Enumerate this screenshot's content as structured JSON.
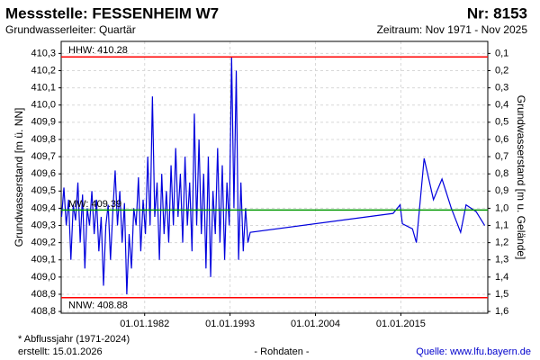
{
  "chart_data": {
    "type": "line",
    "title": "Messstelle: FESSENHEIM W7",
    "number": "Nr: 8153",
    "subtitle": "Grundwasserleiter: Quartär",
    "period": "Zeitraum: Nov 1971 - Nov 2025",
    "ylabel": "Grundwasserstand [m ü. NN]",
    "y2label": "Grundwasserstand [m u. Gelände]",
    "footnote": "* Abflussjahr (1971-2024)",
    "created": "erstellt:  15.01.2026",
    "note": "- Rohdaten -",
    "source": "Quelle: www.lfu.bayern.de",
    "xlim": [
      1971.25,
      2026.2
    ],
    "xticks": [
      {
        "value": 1982,
        "label": "01.01.1982"
      },
      {
        "value": 1993,
        "label": "01.01.1993"
      },
      {
        "value": 2004,
        "label": "01.01.2004"
      },
      {
        "value": 2015,
        "label": "01.01.2015"
      }
    ],
    "ylim": [
      408.79,
      410.37
    ],
    "yticks": [
      {
        "value": 408.8,
        "label": "408,8"
      },
      {
        "value": 408.9,
        "label": "408,9"
      },
      {
        "value": 409.0,
        "label": "409,0"
      },
      {
        "value": 409.1,
        "label": "409,1"
      },
      {
        "value": 409.2,
        "label": "409,2"
      },
      {
        "value": 409.3,
        "label": "409,3"
      },
      {
        "value": 409.4,
        "label": "409,4"
      },
      {
        "value": 409.5,
        "label": "409,5"
      },
      {
        "value": 409.6,
        "label": "409,6"
      },
      {
        "value": 409.7,
        "label": "409,7"
      },
      {
        "value": 409.8,
        "label": "409,8"
      },
      {
        "value": 409.9,
        "label": "409,9"
      },
      {
        "value": 410.0,
        "label": "410,0"
      },
      {
        "value": 410.1,
        "label": "410,1"
      },
      {
        "value": 410.2,
        "label": "410,2"
      },
      {
        "value": 410.3,
        "label": "410,3"
      }
    ],
    "y2lim": [
      1.61,
      0.03
    ],
    "y2ticks": [
      {
        "value": 0.1,
        "label": "0,1"
      },
      {
        "value": 0.2,
        "label": "0,2"
      },
      {
        "value": 0.3,
        "label": "0,3"
      },
      {
        "value": 0.4,
        "label": "0,4"
      },
      {
        "value": 0.5,
        "label": "0,5"
      },
      {
        "value": 0.6,
        "label": "0,6"
      },
      {
        "value": 0.7,
        "label": "0,7"
      },
      {
        "value": 0.8,
        "label": "0,8"
      },
      {
        "value": 0.9,
        "label": "0,9"
      },
      {
        "value": 1.0,
        "label": "1,0"
      },
      {
        "value": 1.1,
        "label": "1,1"
      },
      {
        "value": 1.2,
        "label": "1,2"
      },
      {
        "value": 1.3,
        "label": "1,3"
      },
      {
        "value": 1.4,
        "label": "1,4"
      },
      {
        "value": 1.5,
        "label": "1,5"
      },
      {
        "value": 1.6,
        "label": "1,6"
      }
    ],
    "grid": true,
    "reference_lines": [
      {
        "label": "HHW: 410.28",
        "value": 410.28,
        "color": "#ff0000"
      },
      {
        "label": "MW: 409.39",
        "value": 409.39,
        "color": "#009900"
      },
      {
        "label": "NNW: 408.88",
        "value": 408.88,
        "color": "#ff0000"
      }
    ],
    "x": [
      1971.3,
      1971.6,
      1971.9,
      1972.2,
      1972.5,
      1972.8,
      1973.1,
      1973.4,
      1973.7,
      1974.0,
      1974.3,
      1974.6,
      1974.9,
      1975.2,
      1975.5,
      1975.8,
      1976.1,
      1976.4,
      1976.7,
      1977.0,
      1977.3,
      1977.6,
      1977.9,
      1978.2,
      1978.5,
      1978.8,
      1979.1,
      1979.4,
      1979.7,
      1980.0,
      1980.3,
      1980.6,
      1980.9,
      1981.2,
      1981.5,
      1981.8,
      1982.1,
      1982.4,
      1982.7,
      1983.0,
      1983.3,
      1983.6,
      1983.9,
      1984.2,
      1984.5,
      1984.8,
      1985.1,
      1985.4,
      1985.7,
      1986.0,
      1986.3,
      1986.6,
      1986.9,
      1987.2,
      1987.5,
      1987.8,
      1988.1,
      1988.4,
      1988.7,
      1989.0,
      1989.3,
      1989.6,
      1989.9,
      1990.2,
      1990.5,
      1990.8,
      1991.1,
      1991.4,
      1991.7,
      1992.0,
      1992.3,
      1992.6,
      1992.9,
      1993.2,
      1993.5,
      1993.8,
      1994.1,
      1994.4,
      1994.7,
      1995.0,
      1995.3,
      1995.6,
      2014.0,
      2014.9,
      2015.2,
      2016.5,
      2017.0,
      2018.0,
      2019.2,
      2020.3,
      2021.5,
      2022.7,
      2023.4,
      2024.7,
      2025.8
    ],
    "series": [
      {
        "name": "Grundwasserstand",
        "color": "#0000dd",
        "values": [
          409.35,
          409.52,
          409.3,
          409.45,
          409.1,
          409.42,
          409.33,
          409.55,
          409.2,
          409.48,
          409.05,
          409.4,
          409.3,
          409.5,
          409.25,
          409.45,
          409.15,
          409.35,
          408.95,
          409.3,
          409.42,
          409.1,
          409.38,
          409.62,
          409.3,
          409.5,
          409.2,
          409.43,
          408.9,
          409.25,
          409.05,
          409.4,
          409.3,
          409.58,
          409.15,
          409.45,
          409.25,
          409.7,
          409.3,
          410.05,
          409.35,
          409.55,
          409.1,
          409.6,
          409.25,
          409.5,
          409.2,
          409.65,
          409.3,
          409.75,
          409.35,
          409.6,
          409.2,
          409.7,
          409.3,
          409.55,
          409.15,
          409.95,
          409.3,
          409.8,
          409.25,
          409.6,
          409.05,
          409.7,
          409.0,
          409.5,
          409.25,
          409.75,
          409.2,
          409.65,
          409.1,
          409.55,
          409.3,
          410.28,
          409.4,
          410.2,
          409.1,
          409.55,
          409.15,
          409.4,
          409.2,
          409.26,
          409.37,
          409.42,
          409.31,
          409.28,
          409.2,
          409.69,
          409.45,
          409.57,
          409.4,
          409.26,
          409.42,
          409.38,
          409.3
        ]
      }
    ]
  }
}
